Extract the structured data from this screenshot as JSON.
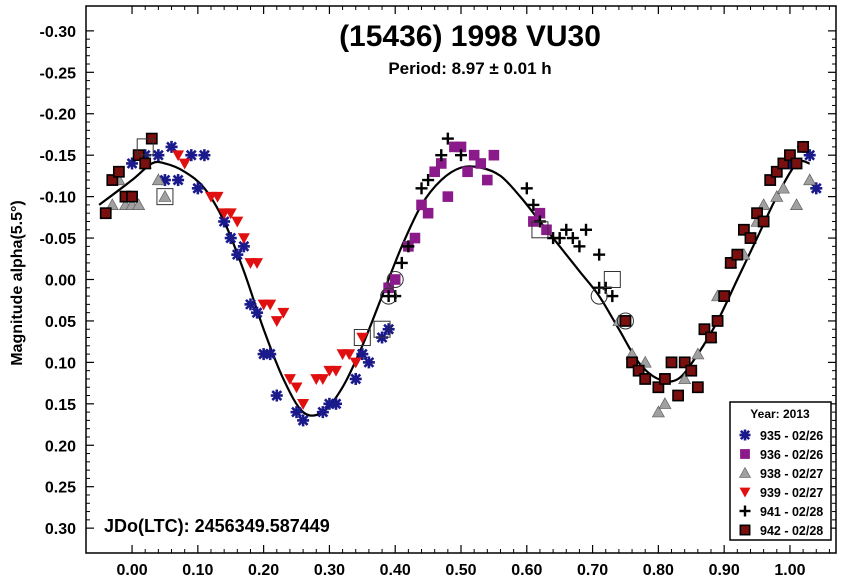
{
  "chart_data": {
    "type": "scatter",
    "title": "(15436) 1998 VU30",
    "subtitle": "Period: 8.97 ± 0.01 h",
    "ylabel": "Magnitude alpha(5.5°)",
    "xlabel": "",
    "xlim": [
      -0.07,
      1.07
    ],
    "ylim": [
      0.33,
      -0.33
    ],
    "y_inverted": true,
    "x_ticks": [
      "0.00",
      "0.10",
      "0.20",
      "0.30",
      "0.40",
      "0.50",
      "0.60",
      "0.70",
      "0.80",
      "0.90",
      "1.00"
    ],
    "x_tick_values": [
      0.0,
      0.1,
      0.2,
      0.3,
      0.4,
      0.5,
      0.6,
      0.7,
      0.8,
      0.9,
      1.0
    ],
    "y_ticks": [
      "-0.30",
      "-0.25",
      "-0.20",
      "-0.15",
      "-0.10",
      "-0.05",
      "0.00",
      "0.05",
      "0.10",
      "0.15",
      "0.20",
      "0.25",
      "0.30"
    ],
    "y_tick_values": [
      -0.3,
      -0.25,
      -0.2,
      -0.15,
      -0.1,
      -0.05,
      0.0,
      0.05,
      0.1,
      0.15,
      0.2,
      0.25,
      0.3
    ],
    "annotation": "JDo(LTC): 2456349.587449",
    "legend": {
      "position": "bottom-right",
      "title": "Year: 2013",
      "entries": [
        "935 - 02/26",
        "936 - 02/26",
        "938 - 02/27",
        "939 - 02/27",
        "941 - 02/28",
        "942 - 02/28"
      ]
    },
    "series": [
      {
        "name": "935 - 02/26",
        "marker": "asterisk",
        "color": "#1a1a8c",
        "points": [
          [
            0.0,
            -0.14
          ],
          [
            0.02,
            -0.15
          ],
          [
            0.04,
            -0.15
          ],
          [
            0.05,
            -0.12
          ],
          [
            0.06,
            -0.16
          ],
          [
            0.07,
            -0.12
          ],
          [
            0.09,
            -0.15
          ],
          [
            0.1,
            -0.11
          ],
          [
            0.11,
            -0.15
          ],
          [
            0.14,
            -0.07
          ],
          [
            0.15,
            -0.05
          ],
          [
            0.16,
            -0.03
          ],
          [
            0.17,
            -0.04
          ],
          [
            0.18,
            0.03
          ],
          [
            0.19,
            0.04
          ],
          [
            0.2,
            0.09
          ],
          [
            0.21,
            0.09
          ],
          [
            0.22,
            0.14
          ],
          [
            0.25,
            0.16
          ],
          [
            0.26,
            0.17
          ],
          [
            0.29,
            0.16
          ],
          [
            0.3,
            0.15
          ],
          [
            0.31,
            0.15
          ],
          [
            0.34,
            0.12
          ],
          [
            0.35,
            0.09
          ],
          [
            0.36,
            0.1
          ],
          [
            0.38,
            0.07
          ],
          [
            0.39,
            0.06
          ],
          [
            1.0,
            -0.14
          ],
          [
            1.02,
            -0.16
          ],
          [
            1.03,
            -0.15
          ],
          [
            1.04,
            -0.11
          ]
        ]
      },
      {
        "name": "936 - 02/26",
        "marker": "square",
        "color": "#8b1a8b",
        "points": [
          [
            0.39,
            0.01
          ],
          [
            0.4,
            0.0
          ],
          [
            0.42,
            -0.04
          ],
          [
            0.43,
            -0.05
          ],
          [
            0.44,
            -0.09
          ],
          [
            0.45,
            -0.08
          ],
          [
            0.46,
            -0.13
          ],
          [
            0.47,
            -0.14
          ],
          [
            0.48,
            -0.1
          ],
          [
            0.49,
            -0.16
          ],
          [
            0.5,
            -0.16
          ],
          [
            0.51,
            -0.13
          ],
          [
            0.52,
            -0.15
          ],
          [
            0.53,
            -0.14
          ],
          [
            0.54,
            -0.12
          ],
          [
            0.55,
            -0.15
          ],
          [
            0.61,
            -0.07
          ],
          [
            0.62,
            -0.08
          ],
          [
            0.63,
            -0.06
          ]
        ]
      },
      {
        "name": "938 - 02/27",
        "marker": "triangle",
        "color": "#a0a0a0",
        "points": [
          [
            -0.03,
            -0.09
          ],
          [
            -0.02,
            -0.12
          ],
          [
            -0.01,
            -0.09
          ],
          [
            0.0,
            -0.09
          ],
          [
            0.01,
            -0.09
          ],
          [
            0.02,
            -0.14
          ],
          [
            0.04,
            -0.12
          ],
          [
            0.05,
            -0.1
          ],
          [
            0.74,
            0.05
          ],
          [
            0.76,
            0.09
          ],
          [
            0.78,
            0.1
          ],
          [
            0.8,
            0.16
          ],
          [
            0.81,
            0.15
          ],
          [
            0.84,
            0.12
          ],
          [
            0.86,
            0.09
          ],
          [
            0.88,
            0.07
          ],
          [
            0.89,
            0.02
          ],
          [
            0.91,
            -0.02
          ],
          [
            0.93,
            -0.03
          ],
          [
            0.95,
            -0.07
          ],
          [
            0.96,
            -0.09
          ],
          [
            0.98,
            -0.1
          ],
          [
            0.99,
            -0.11
          ],
          [
            1.01,
            -0.09
          ],
          [
            1.03,
            -0.12
          ]
        ]
      },
      {
        "name": "939 - 02/27",
        "marker": "triangle-down",
        "color": "#e01010",
        "points": [
          [
            0.07,
            -0.15
          ],
          [
            0.08,
            -0.14
          ],
          [
            0.12,
            -0.1
          ],
          [
            0.13,
            -0.1
          ],
          [
            0.14,
            -0.08
          ],
          [
            0.15,
            -0.08
          ],
          [
            0.16,
            -0.07
          ],
          [
            0.17,
            -0.05
          ],
          [
            0.18,
            -0.02
          ],
          [
            0.19,
            -0.02
          ],
          [
            0.2,
            0.03
          ],
          [
            0.21,
            0.03
          ],
          [
            0.22,
            0.05
          ],
          [
            0.23,
            0.04
          ],
          [
            0.24,
            0.12
          ],
          [
            0.25,
            0.13
          ],
          [
            0.26,
            0.15
          ],
          [
            0.28,
            0.12
          ],
          [
            0.29,
            0.12
          ],
          [
            0.3,
            0.11
          ],
          [
            0.31,
            0.11
          ],
          [
            0.32,
            0.09
          ],
          [
            0.33,
            0.09
          ],
          [
            0.34,
            0.1
          ],
          [
            0.35,
            0.07
          ]
        ]
      },
      {
        "name": "941 - 02/28",
        "marker": "plus",
        "color": "#000000",
        "points": [
          [
            0.39,
            0.02
          ],
          [
            0.4,
            0.02
          ],
          [
            0.41,
            -0.02
          ],
          [
            0.42,
            -0.04
          ],
          [
            0.44,
            -0.11
          ],
          [
            0.45,
            -0.12
          ],
          [
            0.47,
            -0.15
          ],
          [
            0.48,
            -0.17
          ],
          [
            0.5,
            -0.15
          ],
          [
            0.6,
            -0.11
          ],
          [
            0.61,
            -0.09
          ],
          [
            0.62,
            -0.07
          ],
          [
            0.64,
            -0.05
          ],
          [
            0.65,
            -0.05
          ],
          [
            0.66,
            -0.06
          ],
          [
            0.67,
            -0.05
          ],
          [
            0.68,
            -0.04
          ],
          [
            0.69,
            -0.06
          ],
          [
            0.71,
            -0.03
          ],
          [
            0.71,
            0.01
          ],
          [
            0.72,
            0.01
          ],
          [
            0.73,
            0.02
          ]
        ]
      },
      {
        "name": "942 - 02/28",
        "marker": "filled-square",
        "color": "#7a0f0f",
        "points": [
          [
            -0.04,
            -0.08
          ],
          [
            -0.03,
            -0.12
          ],
          [
            -0.02,
            -0.13
          ],
          [
            -0.01,
            -0.1
          ],
          [
            0.0,
            -0.1
          ],
          [
            0.01,
            -0.15
          ],
          [
            0.02,
            -0.14
          ],
          [
            0.03,
            -0.17
          ],
          [
            0.75,
            0.05
          ],
          [
            0.76,
            0.1
          ],
          [
            0.77,
            0.11
          ],
          [
            0.78,
            0.12
          ],
          [
            0.8,
            0.13
          ],
          [
            0.81,
            0.12
          ],
          [
            0.82,
            0.1
          ],
          [
            0.83,
            0.14
          ],
          [
            0.84,
            0.1
          ],
          [
            0.85,
            0.11
          ],
          [
            0.86,
            0.13
          ],
          [
            0.87,
            0.06
          ],
          [
            0.88,
            0.07
          ],
          [
            0.89,
            0.05
          ],
          [
            0.9,
            0.02
          ],
          [
            0.91,
            -0.02
          ],
          [
            0.92,
            -0.03
          ],
          [
            0.93,
            -0.06
          ],
          [
            0.94,
            -0.05
          ],
          [
            0.95,
            -0.08
          ],
          [
            0.96,
            -0.07
          ],
          [
            0.97,
            -0.12
          ],
          [
            0.98,
            -0.13
          ],
          [
            0.99,
            -0.14
          ],
          [
            1.0,
            -0.15
          ],
          [
            1.01,
            -0.14
          ],
          [
            1.02,
            -0.16
          ]
        ]
      }
    ],
    "fit_curve": {
      "x": [
        -0.05,
        0.0,
        0.03,
        0.05,
        0.08,
        0.11,
        0.14,
        0.17,
        0.2,
        0.23,
        0.26,
        0.29,
        0.32,
        0.35,
        0.38,
        0.41,
        0.44,
        0.47,
        0.5,
        0.53,
        0.56,
        0.59,
        0.62,
        0.65,
        0.68,
        0.71,
        0.74,
        0.77,
        0.8,
        0.83,
        0.86,
        0.89,
        0.92,
        0.95,
        0.98,
        1.01,
        1.03
      ],
      "y": [
        -0.09,
        -0.12,
        -0.14,
        -0.14,
        -0.13,
        -0.11,
        -0.07,
        -0.01,
        0.06,
        0.12,
        0.16,
        0.16,
        0.13,
        0.08,
        0.02,
        -0.04,
        -0.09,
        -0.12,
        -0.135,
        -0.135,
        -0.125,
        -0.1,
        -0.07,
        -0.04,
        -0.01,
        0.02,
        0.06,
        0.1,
        0.12,
        0.12,
        0.09,
        0.05,
        0.0,
        -0.05,
        -0.1,
        -0.14,
        -0.14
      ]
    },
    "circled_points": [
      [
        0.02,
        -0.16,
        "square"
      ],
      [
        0.05,
        -0.1,
        "square"
      ],
      [
        0.35,
        0.07,
        "square"
      ],
      [
        0.38,
        0.06,
        "square"
      ],
      [
        0.62,
        -0.06,
        "square"
      ],
      [
        0.73,
        0.0,
        "square"
      ],
      [
        0.39,
        0.02,
        "circle"
      ],
      [
        0.4,
        0.0,
        "circle"
      ],
      [
        0.71,
        0.02,
        "circle"
      ],
      [
        0.75,
        0.05,
        "circle"
      ]
    ]
  }
}
